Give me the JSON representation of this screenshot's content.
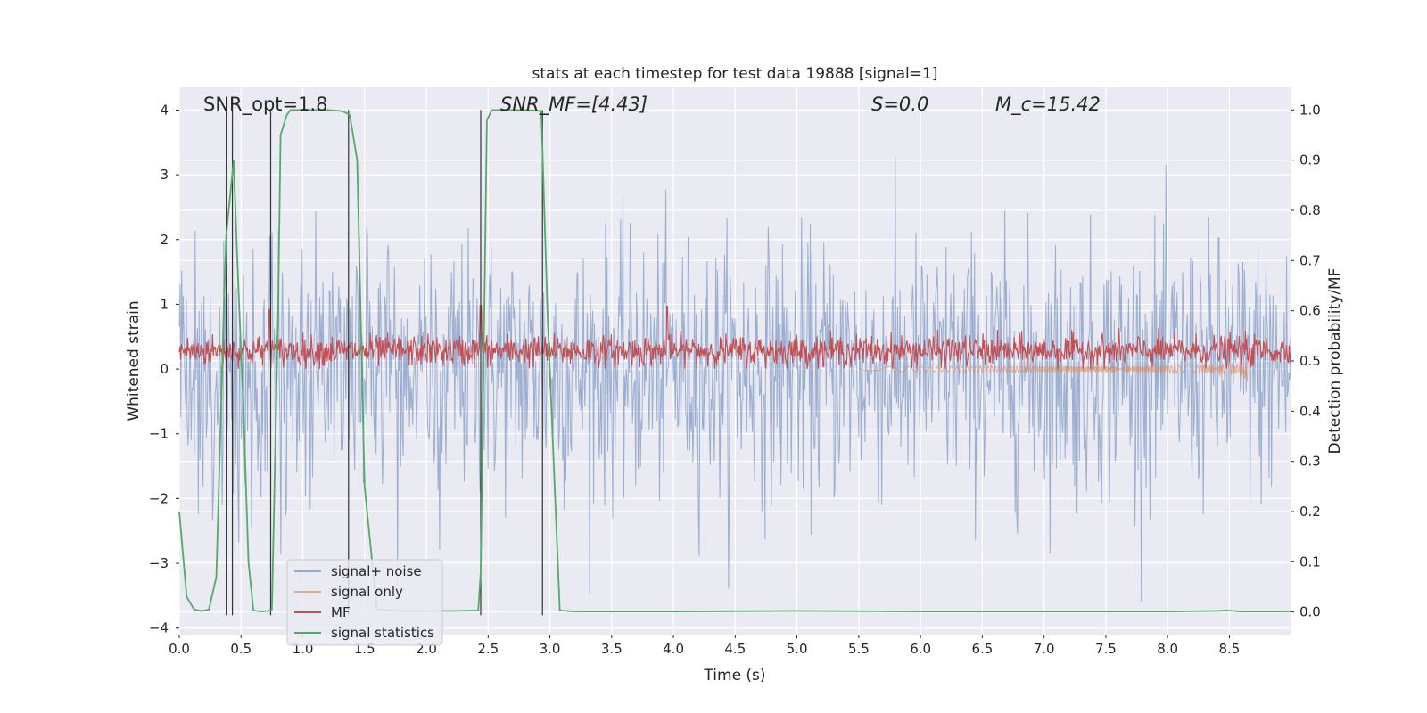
{
  "chart_data": {
    "type": "line",
    "title": "stats at each timestep for test data 19888 [signal=1]",
    "xlabel": "Time (s)",
    "ylabel_left": "Whitened strain",
    "ylabel_right": "Detection probability/MF",
    "xlim": [
      0.0,
      8.995
    ],
    "ylim_left": [
      -4.1,
      4.35
    ],
    "ylim_right": [
      -0.045,
      1.045
    ],
    "x_ticks": [
      0.0,
      0.5,
      1.0,
      1.5,
      2.0,
      2.5,
      3.0,
      3.5,
      4.0,
      4.5,
      5.0,
      5.5,
      6.0,
      6.5,
      7.0,
      7.5,
      8.0,
      8.5
    ],
    "x_tick_labels": [
      "0.0",
      "0.5",
      "1.0",
      "1.5",
      "2.0",
      "2.5",
      "3.0",
      "3.5",
      "4.0",
      "4.5",
      "5.0",
      "5.5",
      "6.0",
      "6.5",
      "7.0",
      "7.5",
      "8.0",
      "8.5"
    ],
    "y_left_ticks": [
      -4,
      -3,
      -2,
      -1,
      0,
      1,
      2,
      3,
      4
    ],
    "y_left_tick_labels": [
      "−4",
      "−3",
      "−2",
      "−1",
      "0",
      "1",
      "2",
      "3",
      "4"
    ],
    "y_right_ticks": [
      0.0,
      0.1,
      0.2,
      0.3,
      0.4,
      0.5,
      0.6,
      0.7,
      0.8,
      0.9,
      1.0
    ],
    "y_right_tick_labels": [
      "0.0",
      "0.1",
      "0.2",
      "0.3",
      "0.4",
      "0.5",
      "0.6",
      "0.7",
      "0.8",
      "0.9",
      "1.0"
    ],
    "annotations": [
      {
        "text": "SNR_opt=1.8",
        "x": 0.2,
        "y": 4.05
      },
      {
        "text": "SNR_MF=[4.43]",
        "x": 2.6,
        "y": 4.05
      },
      {
        "text": "S=0.0",
        "x": 5.6,
        "y": 4.05
      },
      {
        "text": "M_c=15.42",
        "x": 6.6,
        "y": 4.05
      }
    ],
    "series": [
      {
        "name": "signal+ noise",
        "axis": "left",
        "color": "#4c72b0",
        "opacity": 0.5,
        "style": "noise",
        "amplitude": 1.0,
        "t_range": [
          0.0,
          8.995
        ]
      },
      {
        "name": "signal only",
        "axis": "left",
        "color": "#dd8452",
        "opacity": 0.6,
        "style": "chirp",
        "t_start": 5.5,
        "t_merge": 8.65,
        "envelope_end": 0.32
      },
      {
        "name": "MF",
        "axis": "left",
        "color": "#c44e52",
        "style": "noise-positive",
        "mean": 0.28,
        "spread": 0.12,
        "peak_x": [
          0.73,
          2.44,
          3.95
        ],
        "peak_y": [
          0.92,
          0.98,
          0.97
        ]
      },
      {
        "name": "signal statistics",
        "axis": "right",
        "color": "#55a868",
        "x": [
          0.0,
          0.06,
          0.12,
          0.18,
          0.24,
          0.3,
          0.36,
          0.38,
          0.44,
          0.47,
          0.52,
          0.56,
          0.6,
          0.66,
          0.72,
          0.75,
          0.8,
          0.82,
          0.87,
          0.9,
          1.0,
          1.2,
          1.32,
          1.38,
          1.44,
          1.5,
          1.6,
          1.8,
          2.0,
          2.2,
          2.42,
          2.44,
          2.49,
          2.53,
          2.6,
          2.8,
          2.93,
          2.98,
          3.08,
          3.2,
          3.5,
          4.0,
          5.0,
          6.0,
          7.0,
          8.0,
          8.4,
          8.48,
          8.6,
          8.8,
          8.995
        ],
        "y": [
          0.2,
          0.03,
          0.005,
          0.002,
          0.005,
          0.07,
          0.6,
          0.75,
          0.9,
          0.7,
          0.4,
          0.1,
          0.003,
          0.001,
          0.002,
          0.005,
          0.6,
          0.95,
          0.99,
          1.0,
          1.0,
          1.0,
          0.998,
          0.99,
          0.9,
          0.25,
          0.005,
          0.002,
          0.002,
          0.002,
          0.003,
          0.08,
          0.98,
          1.0,
          1.0,
          1.0,
          0.998,
          0.6,
          0.003,
          0.001,
          0.001,
          0.001,
          0.002,
          0.001,
          0.001,
          0.001,
          0.002,
          0.003,
          0.001,
          0.001,
          0.001
        ]
      }
    ],
    "vlines": {
      "color": "#333333",
      "x": [
        0.38,
        0.43,
        0.74,
        1.37,
        2.44,
        2.94
      ],
      "y_range": [
        -3.8,
        4.0
      ]
    },
    "legend": {
      "location": "lower-left",
      "entries": [
        "signal+ noise",
        "signal only",
        "MF",
        "signal statistics"
      ]
    },
    "grid": true,
    "colors": {
      "axes_background": "#eaeaf2",
      "grid": "#ffffff",
      "text": "#262626"
    }
  }
}
